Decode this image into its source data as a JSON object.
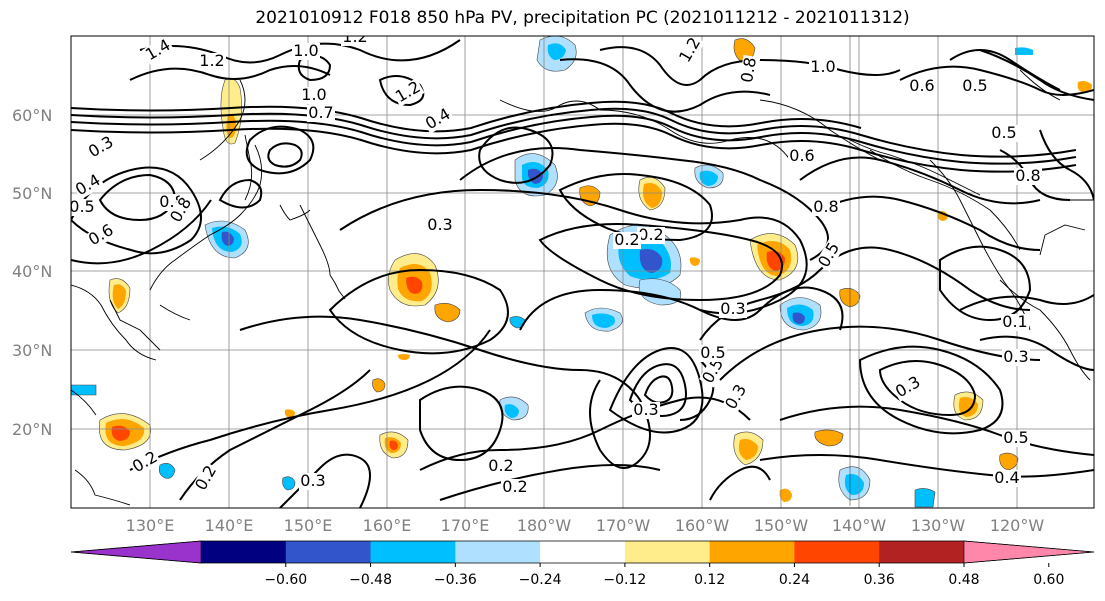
{
  "title": "2021010912 F018 850 hPa PV, precipitation PC (2021011212 - 2021011312)",
  "lat_labels": [
    "60°N",
    "50°N",
    "40°N",
    "30°N",
    "20°N"
  ],
  "lon_labels": [
    "130°E",
    "140°E",
    "150°E",
    "160°E",
    "170°E",
    "180°W",
    "170°W",
    "160°W",
    "150°W",
    "140°W",
    "130°W",
    "120°W"
  ],
  "colorbar": {
    "colors": [
      "#9933CC",
      "#000080",
      "#3355CC",
      "#00BFFF",
      "#B0E0FF",
      "#FFFFFF",
      "#FFEC8B",
      "#FFA500",
      "#FF4500",
      "#B22222",
      "#FF88AA"
    ],
    "ticks": [
      "−0.60",
      "−0.48",
      "−0.36",
      "−0.24",
      "−0.12",
      "0.12",
      "0.24",
      "0.36",
      "0.48",
      "0.60"
    ]
  },
  "contour_labels": [
    "1.4",
    "1.2",
    "1.0",
    "1.2",
    "1.2",
    "1.2",
    "0.7",
    "0.4",
    "0.3",
    "0.4",
    "0.5",
    "0.6",
    "0.8",
    "0.8",
    "1.0",
    "0.8",
    "0.6",
    "0.5",
    "1.0",
    "0.6",
    "0.8",
    "0.5",
    "0.3",
    "0.2",
    "0.3",
    "0.5",
    "0.3",
    "0.5",
    "0.3",
    "0.3",
    "0.5",
    "0.1",
    "0.3",
    "0.5",
    "0.4",
    "0.2",
    "0.2",
    "0.2",
    "0.2",
    "0.3",
    "0.2",
    "0.8",
    "0.8"
  ],
  "precip_colors": {
    "neg_light": "#B0E0FF",
    "neg_mid": "#00BFFF",
    "neg_strong": "#3355CC",
    "pos_light": "#FFEC8B",
    "pos_mid": "#FFA500",
    "pos_strong": "#FF4500"
  }
}
